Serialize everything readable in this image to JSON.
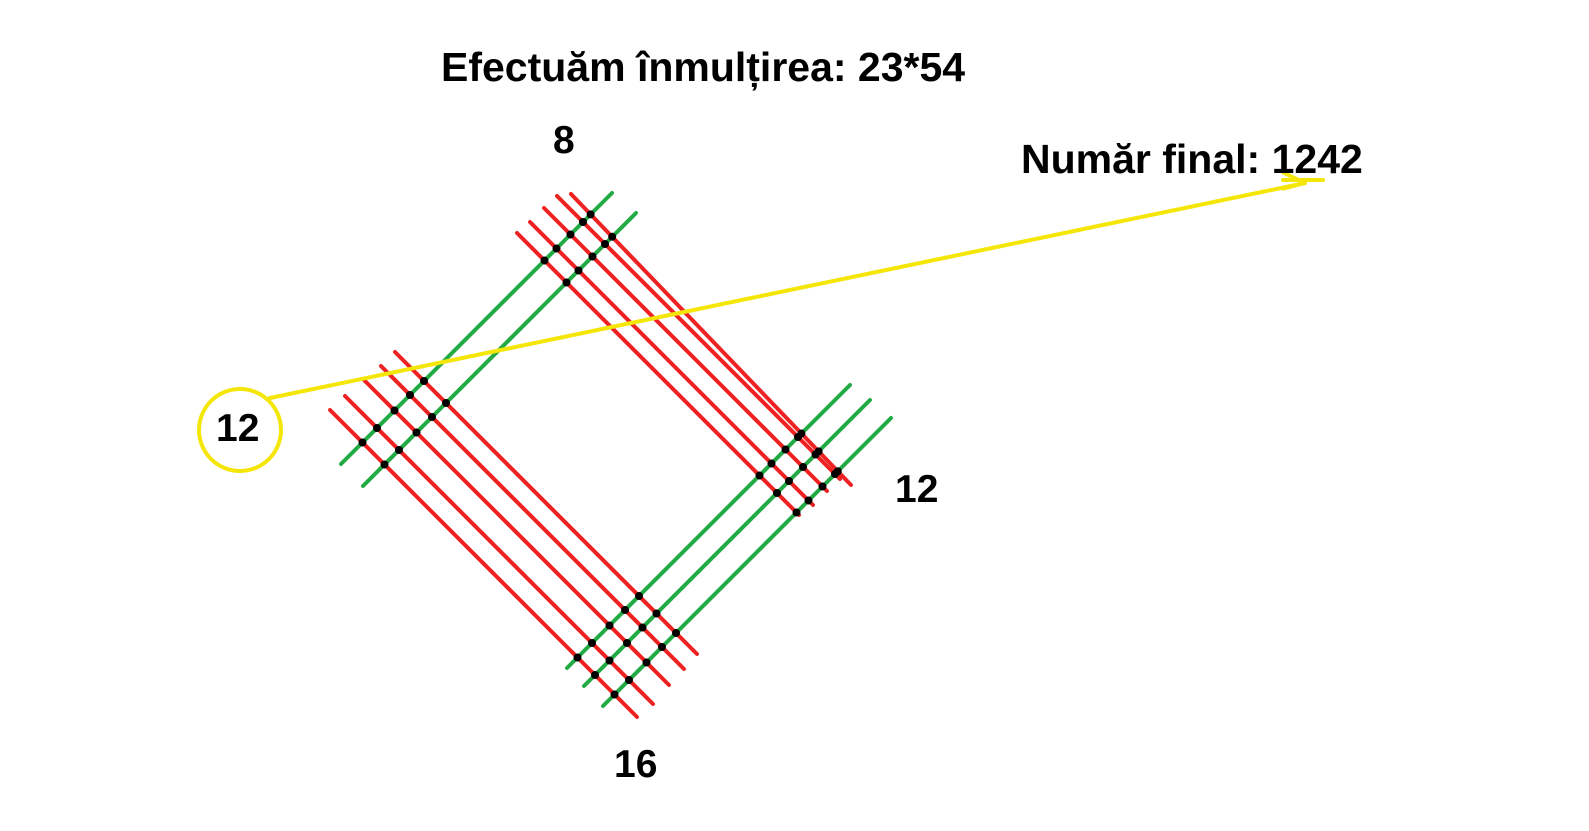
{
  "title": "Efectuăm înmulțirea: 23*54",
  "counts": {
    "top": "8",
    "left": "12",
    "right": "12",
    "bottom": "16"
  },
  "final": "Număr final: 1242",
  "colors": {
    "tens_lines_first_factor": "#22aa44",
    "lines_second_factor": "#ee2222",
    "highlight": "#f5e60a",
    "intersection_dot": "#000000"
  }
}
